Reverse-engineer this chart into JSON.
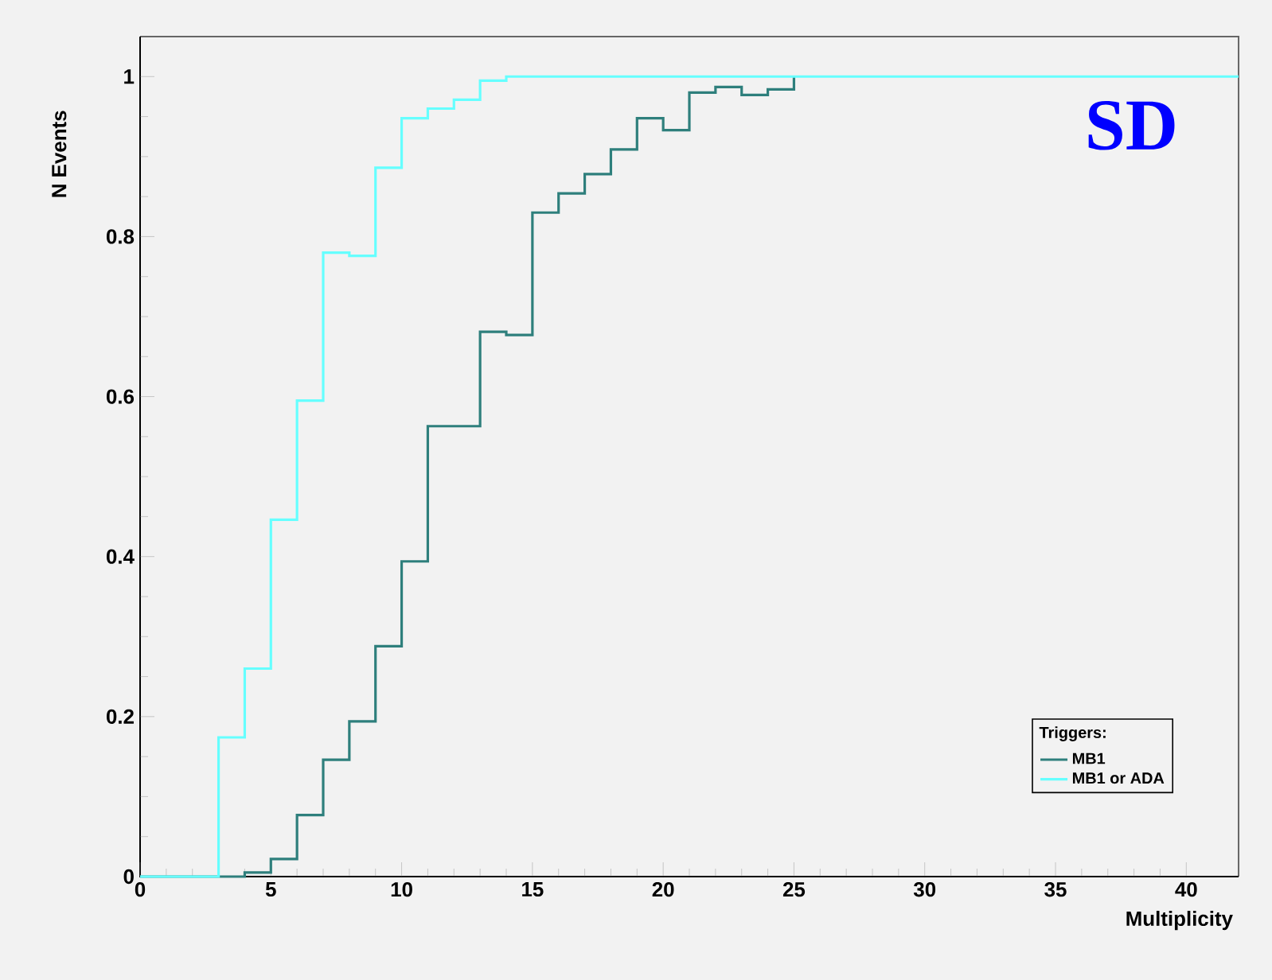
{
  "chart_data": {
    "type": "step",
    "xlabel": "Multiplicity",
    "ylabel": "N Events",
    "legend_title": "Triggers:",
    "annotations": [
      "SD"
    ],
    "x": [
      0,
      1,
      2,
      3,
      4,
      5,
      6,
      7,
      8,
      9,
      10,
      11,
      12,
      13,
      14,
      15,
      16,
      17,
      18,
      19,
      20,
      21,
      22,
      23,
      24,
      25,
      26,
      27,
      28,
      29,
      30,
      31,
      32,
      33,
      34,
      35,
      36,
      37,
      38,
      39,
      40,
      41,
      42
    ],
    "series": [
      {
        "name": "MB1",
        "color": "#2e7f7c",
        "values": [
          0,
          0,
          0,
          0,
          0.005,
          0.022,
          0.077,
          0.146,
          0.194,
          0.288,
          0.394,
          0.563,
          0.563,
          0.681,
          0.677,
          0.83,
          0.854,
          0.878,
          0.909,
          0.948,
          0.933,
          0.98,
          0.987,
          0.977,
          0.984,
          1,
          null,
          null,
          null,
          null,
          null,
          null,
          null,
          null,
          null,
          null,
          null,
          null,
          null,
          null,
          null,
          null,
          null
        ]
      },
      {
        "name": "MB1 or ADA",
        "color": "#66ffff",
        "values": [
          0,
          0,
          0,
          0.174,
          0.26,
          0.446,
          0.595,
          0.78,
          0.776,
          0.886,
          0.948,
          0.96,
          0.971,
          0.995,
          1,
          1,
          1,
          1,
          1,
          1,
          1,
          1,
          1,
          1,
          1,
          1,
          1,
          1,
          1,
          1,
          1,
          1,
          1,
          1,
          1,
          1,
          1,
          1,
          1,
          1,
          1,
          1,
          1
        ]
      }
    ],
    "xlim": [
      0,
      42
    ],
    "xticks": [
      0,
      5,
      10,
      15,
      20,
      25,
      30,
      35,
      40
    ],
    "ylim": [
      0,
      1.05
    ],
    "yticks": [
      0,
      0.2,
      0.4,
      0.6,
      0.8,
      1
    ],
    "legend": "bottom right",
    "grid": false
  }
}
